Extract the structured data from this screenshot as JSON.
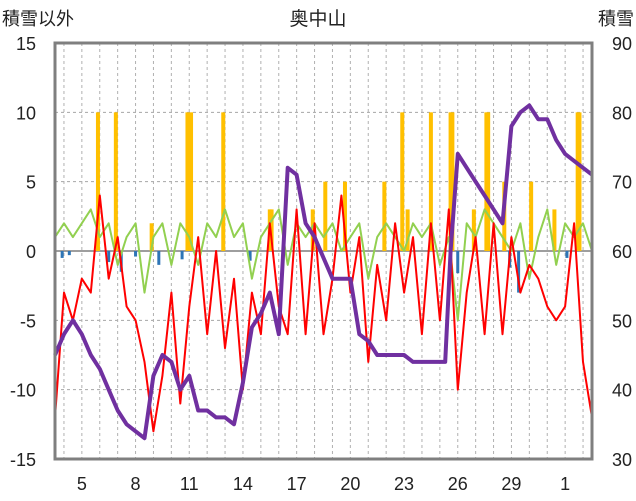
{
  "chart_data": {
    "type": "line",
    "title": "奥中山",
    "y_left_label": "積雪以外",
    "y_right_label": "積雪",
    "y_left_range": [
      -15,
      15
    ],
    "y_left_ticks": [
      "15",
      "10",
      "5",
      "0",
      "-5",
      "-10",
      "-15"
    ],
    "y_right_range": [
      30,
      90
    ],
    "y_right_ticks": [
      "90",
      "80",
      "70",
      "60",
      "50",
      "40",
      "30"
    ],
    "x_ticks": [
      "5",
      "8",
      "11",
      "14",
      "17",
      "20",
      "23",
      "26",
      "29",
      "1"
    ],
    "x_range_days": [
      3.5,
      33.5
    ],
    "grid": "horizontal dashed, vertical dashed daily",
    "colors": {
      "precipitation": "#ffc000",
      "sunshine": "#2e75b6",
      "temperature": "#ff0000",
      "wind": "#92d050",
      "snow_depth": "#7030a0"
    },
    "series": [
      {
        "key": "snow_depth",
        "axis": "right",
        "x": [
          3.5,
          4.0,
          4.5,
          5.0,
          5.5,
          6.0,
          6.5,
          7.0,
          7.5,
          8.0,
          8.5,
          9.0,
          9.5,
          10.0,
          10.5,
          11.0,
          11.5,
          12.0,
          12.5,
          13.0,
          13.5,
          14.0,
          14.5,
          15.0,
          15.5,
          16.0,
          16.5,
          17.0,
          17.5,
          18.0,
          18.5,
          19.0,
          19.5,
          20.0,
          20.5,
          21.0,
          21.5,
          22.0,
          22.5,
          23.0,
          23.5,
          24.0,
          24.5,
          25.0,
          25.3,
          25.6,
          26.0,
          26.5,
          27.0,
          27.5,
          28.0,
          28.5,
          29.0,
          29.5,
          30.0,
          30.5,
          31.0,
          31.5,
          32.0,
          32.5,
          33.0,
          33.5
        ],
        "values": [
          45,
          48,
          50,
          48,
          45,
          43,
          40,
          37,
          35,
          34,
          33,
          42,
          45,
          44,
          40,
          42,
          37,
          37,
          36,
          36,
          35,
          41,
          49,
          51,
          54,
          48,
          72,
          71,
          64,
          62,
          59,
          56,
          56,
          56,
          48,
          47,
          45,
          45,
          45,
          45,
          44,
          44,
          44,
          44,
          44,
          60,
          74,
          72,
          70,
          68,
          66,
          64,
          78,
          80,
          81,
          79,
          79,
          76,
          74,
          73,
          72,
          71
        ]
      },
      {
        "key": "temperature",
        "axis": "left",
        "x": [
          3.5,
          4.0,
          4.5,
          5.0,
          5.5,
          6.0,
          6.5,
          7.0,
          7.5,
          8.0,
          8.5,
          9.0,
          9.5,
          10.0,
          10.5,
          11.0,
          11.5,
          12.0,
          12.5,
          13.0,
          13.5,
          14.0,
          14.5,
          15.0,
          15.5,
          16.0,
          16.5,
          17.0,
          17.5,
          18.0,
          18.5,
          19.0,
          19.5,
          20.0,
          20.5,
          21.0,
          21.5,
          22.0,
          22.5,
          23.0,
          23.5,
          24.0,
          24.5,
          25.0,
          25.5,
          26.0,
          26.5,
          27.0,
          27.5,
          28.0,
          28.5,
          29.0,
          29.5,
          30.0,
          30.5,
          31.0,
          31.5,
          32.0,
          32.5,
          33.0,
          33.5
        ],
        "values": [
          -12,
          -3,
          -5,
          -2,
          -3,
          4,
          -2,
          1,
          -4,
          -5,
          -8,
          -13,
          -9,
          -3,
          -11,
          -4,
          1,
          -6,
          0,
          -7,
          -2,
          -10,
          -3,
          -6,
          2,
          -4,
          -6,
          3,
          -6,
          2,
          -6,
          -2,
          4,
          -3,
          1,
          -8,
          -1,
          -5,
          2,
          -3,
          1,
          -6,
          2,
          -5,
          3,
          -10,
          -3,
          1,
          -6,
          2,
          -6,
          1,
          -3,
          -1,
          -2,
          -4,
          -5,
          -4,
          2,
          -8,
          -12
        ]
      },
      {
        "key": "wind",
        "axis": "left",
        "x": [
          3.5,
          4.0,
          4.5,
          5.0,
          5.5,
          6.0,
          6.5,
          7.0,
          7.5,
          8.0,
          8.5,
          9.0,
          9.5,
          10.0,
          10.5,
          11.0,
          11.5,
          12.0,
          12.5,
          13.0,
          13.5,
          14.0,
          14.5,
          15.0,
          15.5,
          16.0,
          16.5,
          17.0,
          17.5,
          18.0,
          18.5,
          19.0,
          19.5,
          20.0,
          20.5,
          21.0,
          21.5,
          22.0,
          22.5,
          23.0,
          23.5,
          24.0,
          24.5,
          25.0,
          25.5,
          26.0,
          26.5,
          27.0,
          27.5,
          28.0,
          28.5,
          29.0,
          29.5,
          30.0,
          30.5,
          31.0,
          31.5,
          32.0,
          32.5,
          33.0,
          33.5
        ],
        "values": [
          1,
          2,
          1,
          2,
          3,
          1,
          2,
          -1,
          1,
          2,
          -3,
          1,
          2,
          -1,
          2,
          1,
          -1,
          2,
          1,
          3,
          1,
          2,
          -2,
          1,
          2,
          3,
          -1,
          2,
          1,
          2,
          1,
          2,
          0,
          1,
          2,
          -2,
          1,
          2,
          1,
          0,
          2,
          1,
          2,
          -1,
          1,
          -5,
          2,
          1,
          3,
          2,
          1,
          0,
          2,
          -2,
          1,
          3,
          -1,
          2,
          1,
          2,
          0
        ]
      },
      {
        "key": "precipitation",
        "axis": "left",
        "type": "bar",
        "x": [
          5.9,
          6.9,
          8.9,
          10.9,
          11.1,
          12.9,
          15.5,
          15.6,
          17.9,
          18.6,
          19.7,
          21.9,
          22.9,
          23.2,
          24.5,
          25.6,
          25.7,
          26.9,
          27.6,
          27.7,
          28.6,
          30.1,
          31.4,
          32.7,
          32.8
        ],
        "values": [
          10,
          10,
          2,
          10,
          10,
          10,
          3,
          3,
          3,
          5,
          5,
          5,
          10,
          3,
          10,
          10,
          10,
          3,
          10,
          10,
          5,
          5,
          3,
          10,
          10
        ]
      },
      {
        "key": "sunshine",
        "axis": "left",
        "type": "bar",
        "x": [
          3.9,
          4.3,
          6.5,
          7.2,
          8.0,
          9.3,
          10.6,
          14.4,
          26.0,
          28.9,
          29.4,
          32.1
        ],
        "values": [
          -0.5,
          -0.3,
          -0.8,
          -1.5,
          -0.4,
          -1.0,
          -0.6,
          -0.7,
          -1.6,
          -1.2,
          -3.0,
          -0.5
        ]
      }
    ]
  }
}
